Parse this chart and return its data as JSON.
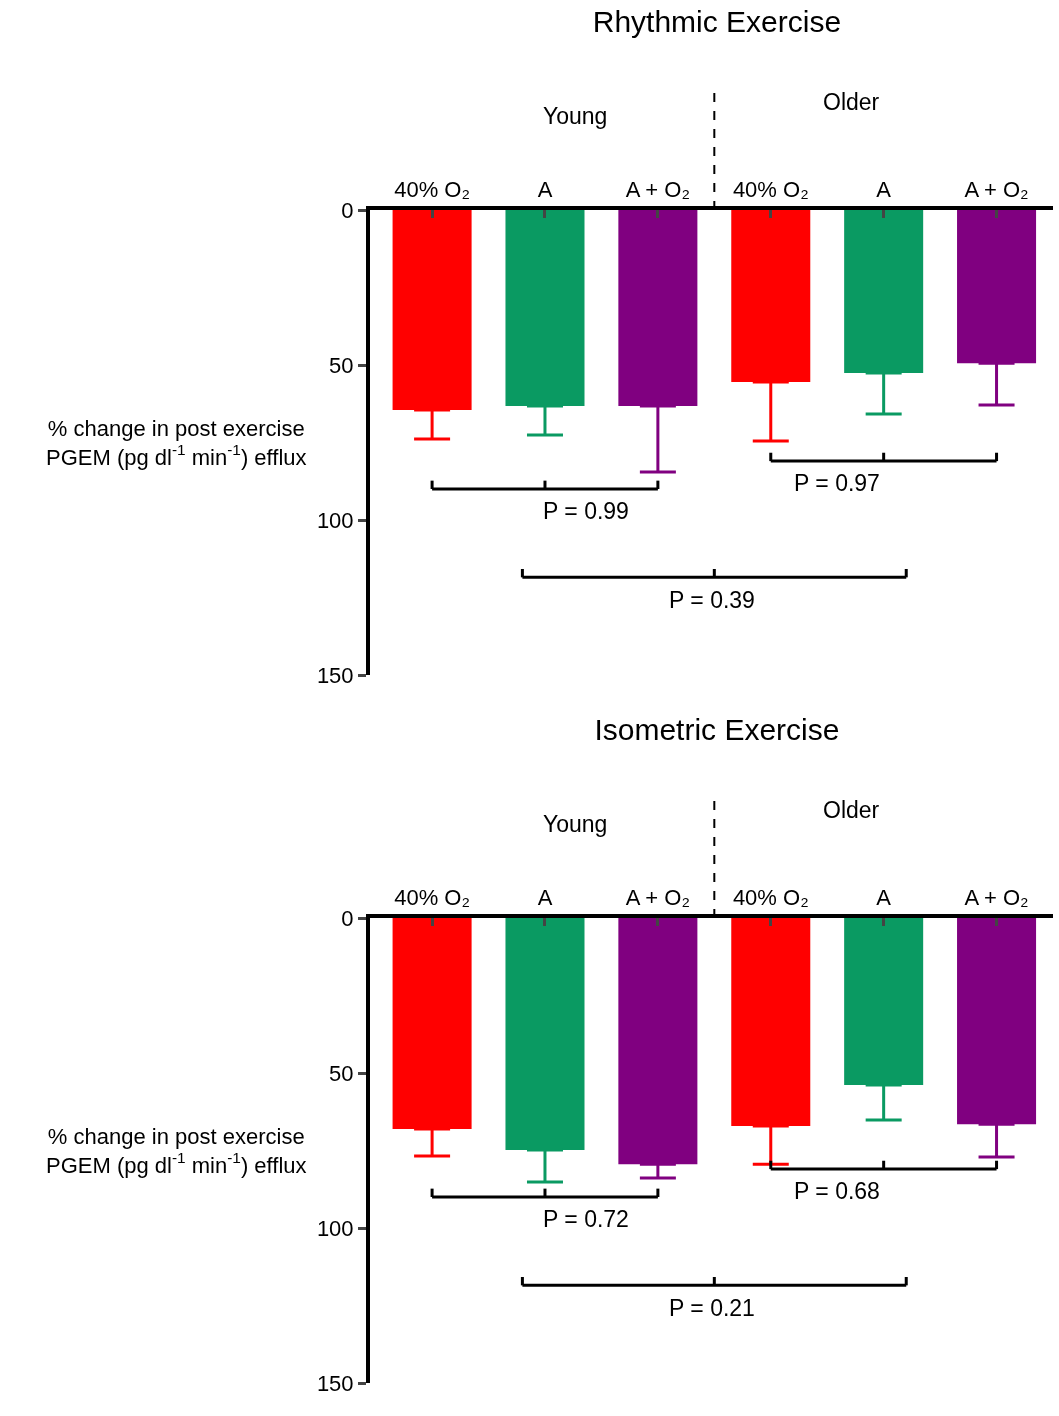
{
  "chart_data": [
    {
      "type": "bar",
      "title": "Rhythmic Exercise",
      "ylabel": "% change in post exercise\nPGEM (pg dl$^{-1}$ min$^{-1}$) efflux",
      "categories": [
        "40% O₂",
        "A",
        "A + O₂",
        "40% O₂",
        "A",
        "A + O₂"
      ],
      "values": [
        64.5,
        63.2,
        63.2,
        55.5,
        52.6,
        49.4
      ],
      "colors": [
        "#ff0000",
        "#0a9a62",
        "#800080",
        "#ff0000",
        "#0a9a62",
        "#800080"
      ],
      "errors": [
        [
          64.5,
          73.9
        ],
        [
          63.2,
          72.6
        ],
        [
          63.2,
          84.5
        ],
        [
          55.5,
          74.5
        ],
        [
          52.6,
          65.8
        ],
        [
          49.4,
          62.9
        ]
      ],
      "ylim": [
        150,
        0
      ],
      "yticks": [
        0,
        50,
        100,
        150
      ],
      "grid": false,
      "annotations": [
        "Young",
        "Older",
        "P = 0.99",
        "P = 0.97",
        "P = 0.39"
      ]
    },
    {
      "type": "bar",
      "title": "Isometric Exercise",
      "ylabel": "% change in post exercise\nPGEM (pg dl$^{-1}$ min$^{-1}$) efflux",
      "categories": [
        "40% O₂",
        "A",
        "A + O₂",
        "40% O₂",
        "A",
        "A + O₂"
      ],
      "values": [
        68.1,
        74.8,
        79.4,
        67.1,
        53.9,
        66.5
      ],
      "colors": [
        "#ff0000",
        "#0a9a62",
        "#800080",
        "#ff0000",
        "#0a9a62",
        "#800080"
      ],
      "errors": [
        [
          68.1,
          76.8
        ],
        [
          74.8,
          85.2
        ],
        [
          79.4,
          83.9
        ],
        [
          67.1,
          79.4
        ],
        [
          53.9,
          65.2
        ],
        [
          66.5,
          77.1
        ]
      ],
      "ylim": [
        150,
        0
      ],
      "yticks": [
        0,
        50,
        100,
        150
      ],
      "grid": false,
      "annotations": [
        "Young",
        "Older",
        "P = 0.72",
        "P = 0.68",
        "P = 0.21"
      ]
    }
  ]
}
